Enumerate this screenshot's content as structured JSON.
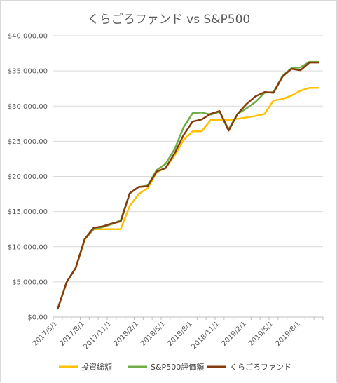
{
  "chart_data": {
    "type": "line",
    "title": "くらごろファンド vs S&P500",
    "xlabel": "",
    "ylabel": "",
    "ylim": [
      0,
      40000
    ],
    "y_ticks": [
      "$0.00",
      "$5,000.00",
      "$10,000.00",
      "$15,000.00",
      "$20,000.00",
      "$25,000.00",
      "$30,000.00",
      "$35,000.00",
      "$40,000.00"
    ],
    "x_tick_labels": [
      "2017/5/1",
      "2017/8/1",
      "2017/11/1",
      "2018/2/1",
      "2018/5/1",
      "2018/8/1",
      "2018/11/1",
      "2019/2/1",
      "2019/5/1",
      "2019/8/1"
    ],
    "grid": true,
    "legend_position": "bottom",
    "categories": [
      "2017/5/1",
      "2017/6/1",
      "2017/7/1",
      "2017/8/1",
      "2017/9/1",
      "2017/10/1",
      "2017/11/1",
      "2017/12/1",
      "2018/1/1",
      "2018/2/1",
      "2018/3/1",
      "2018/4/1",
      "2018/5/1",
      "2018/6/1",
      "2018/7/1",
      "2018/8/1",
      "2018/9/1",
      "2018/10/1",
      "2018/11/1",
      "2018/12/1",
      "2019/1/1",
      "2019/2/1",
      "2019/3/1",
      "2019/4/1",
      "2019/5/1",
      "2019/6/1",
      "2019/7/1",
      "2019/8/1",
      "2019/9/1",
      "2019/10/1"
    ],
    "series": [
      {
        "name": "投資総額",
        "color": "#ffc000",
        "values": [
          1200,
          5000,
          7000,
          11000,
          12500,
          12500,
          12500,
          12500,
          15800,
          17500,
          18300,
          20600,
          21200,
          23000,
          25200,
          26400,
          26400,
          28000,
          28000,
          28000,
          28200,
          28400,
          28600,
          28900,
          30800,
          31000,
          31500,
          32200,
          32600,
          32600
        ]
      },
      {
        "name": "S&P500評価額",
        "color": "#70ad47",
        "values": [
          1200,
          5000,
          7000,
          11100,
          12500,
          12800,
          13200,
          13800,
          17600,
          18500,
          18700,
          20900,
          21800,
          23900,
          27000,
          29000,
          29100,
          28800,
          29200,
          26700,
          28900,
          29700,
          30600,
          31900,
          32000,
          34300,
          35400,
          35500,
          36300,
          36300
        ]
      },
      {
        "name": "くらごろファンド",
        "color": "#843c0c",
        "values": [
          1200,
          5000,
          7000,
          11100,
          12700,
          12900,
          13300,
          13600,
          17600,
          18500,
          18600,
          20700,
          21200,
          23300,
          25900,
          27800,
          28100,
          28900,
          29300,
          26500,
          28900,
          30300,
          31400,
          32000,
          31900,
          34200,
          35300,
          35100,
          36200,
          36200
        ]
      }
    ]
  }
}
